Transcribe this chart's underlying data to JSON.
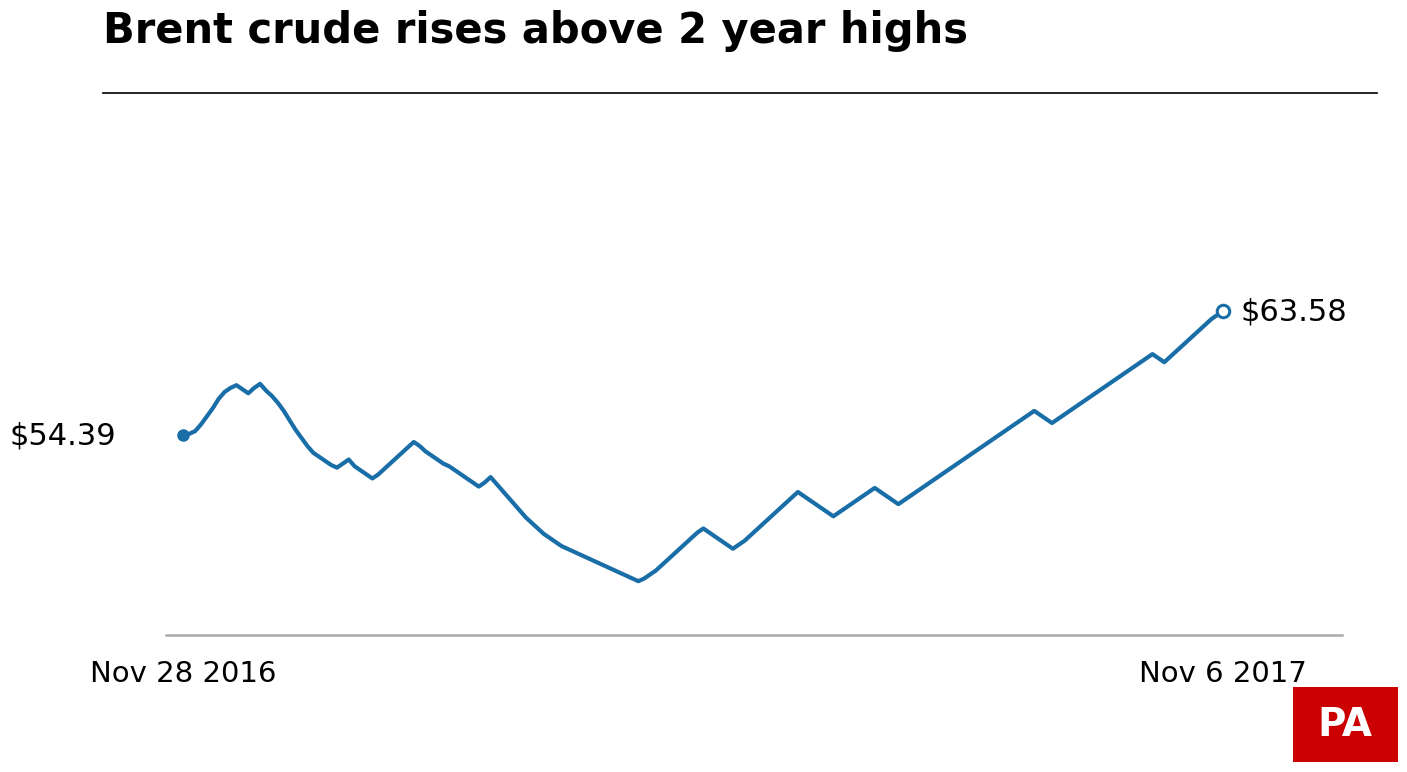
{
  "title": "Brent crude rises above 2 year highs",
  "title_fontsize": 30,
  "line_color": "#1a6ea8",
  "line_width": 3.0,
  "background_color": "#ffffff",
  "start_label": "$54.39",
  "end_label": "$63.58",
  "x_tick_labels": [
    "Nov 28 2016",
    "Nov 6 2017"
  ],
  "annotation_fontsize": 22,
  "axis_line_color": "#aaaaaa",
  "pa_box_color": "#cc0000",
  "pa_text_color": "#ffffff",
  "values": [
    54.39,
    54.5,
    54.7,
    55.2,
    55.8,
    56.4,
    57.1,
    57.6,
    57.9,
    58.1,
    57.8,
    57.5,
    57.9,
    58.2,
    57.7,
    57.3,
    56.8,
    56.2,
    55.5,
    54.8,
    54.2,
    53.6,
    53.1,
    52.8,
    52.5,
    52.2,
    52.0,
    52.3,
    52.6,
    52.1,
    51.8,
    51.5,
    51.2,
    51.5,
    51.9,
    52.3,
    52.7,
    53.1,
    53.5,
    53.9,
    53.6,
    53.2,
    52.9,
    52.6,
    52.3,
    52.1,
    51.8,
    51.5,
    51.2,
    50.9,
    50.6,
    50.9,
    51.3,
    50.8,
    50.3,
    49.8,
    49.3,
    48.8,
    48.3,
    47.9,
    47.5,
    47.1,
    46.8,
    46.5,
    46.2,
    46.0,
    45.8,
    45.6,
    45.4,
    45.2,
    45.0,
    44.8,
    44.6,
    44.4,
    44.2,
    44.0,
    43.8,
    43.6,
    43.8,
    44.1,
    44.4,
    44.8,
    45.2,
    45.6,
    46.0,
    46.4,
    46.8,
    47.2,
    47.5,
    47.2,
    46.9,
    46.6,
    46.3,
    46.0,
    46.3,
    46.6,
    47.0,
    47.4,
    47.8,
    48.2,
    48.6,
    49.0,
    49.4,
    49.8,
    50.2,
    49.9,
    49.6,
    49.3,
    49.0,
    48.7,
    48.4,
    48.7,
    49.0,
    49.3,
    49.6,
    49.9,
    50.2,
    50.5,
    50.2,
    49.9,
    49.6,
    49.3,
    49.6,
    49.9,
    50.2,
    50.5,
    50.8,
    51.1,
    51.4,
    51.7,
    52.0,
    52.3,
    52.6,
    52.9,
    53.2,
    53.5,
    53.8,
    54.1,
    54.4,
    54.7,
    55.0,
    55.3,
    55.6,
    55.9,
    56.2,
    55.9,
    55.6,
    55.3,
    55.6,
    55.9,
    56.2,
    56.5,
    56.8,
    57.1,
    57.4,
    57.7,
    58.0,
    58.3,
    58.6,
    58.9,
    59.2,
    59.5,
    59.8,
    60.1,
    60.4,
    60.1,
    59.8,
    60.2,
    60.6,
    61.0,
    61.4,
    61.8,
    62.2,
    62.6,
    63.0,
    63.3,
    63.58
  ]
}
